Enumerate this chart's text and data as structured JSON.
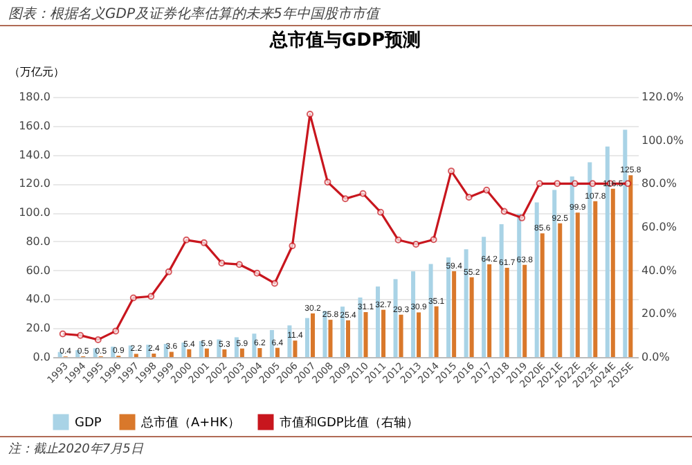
{
  "chart_data": {
    "type": "bar",
    "title": "图表：根据名义GDP及证券化率估算的未来5年中国股市市值",
    "subtitle": "总市值与GDP预测",
    "ylabel": "（万亿元）",
    "categories": [
      "1993",
      "1994",
      "1995",
      "1996",
      "1997",
      "1998",
      "1999",
      "2000",
      "2001",
      "2002",
      "2003",
      "2004",
      "2005",
      "2006",
      "2007",
      "2008",
      "2009",
      "2010",
      "2011",
      "2012",
      "2013",
      "2014",
      "2015",
      "2016",
      "2017",
      "2018",
      "2019",
      "2020E",
      "2021E",
      "2022E",
      "2023E",
      "2024E",
      "2025E"
    ],
    "series": [
      {
        "name": "GDP",
        "type": "bar",
        "color": "#a9d3e6",
        "values": [
          3.5,
          4.8,
          6.1,
          7.2,
          8.0,
          8.5,
          9.1,
          10.0,
          11.0,
          12.2,
          13.7,
          16.2,
          18.7,
          21.9,
          27.0,
          31.9,
          34.9,
          41.2,
          48.8,
          53.9,
          59.3,
          64.4,
          68.9,
          74.6,
          83.2,
          91.9,
          99.1,
          107,
          115.6,
          124.9,
          134.8,
          145.6,
          157.3
        ]
      },
      {
        "name": "总市值（A+HK）",
        "type": "bar",
        "color": "#d9782b",
        "values": [
          0.4,
          0.5,
          0.5,
          0.9,
          2.2,
          2.4,
          3.6,
          5.4,
          5.9,
          5.3,
          5.9,
          6.2,
          6.4,
          11.4,
          30.2,
          25.8,
          25.4,
          31.1,
          32.7,
          29.3,
          30.9,
          35.1,
          59.4,
          55.2,
          64.2,
          61.7,
          63.8,
          85.6,
          92.5,
          99.9,
          107.8,
          116.5,
          125.8
        ],
        "value_labels": [
          "0.4",
          "0.5",
          "0.5",
          "0.9",
          "2.2",
          "2.4",
          "3.6",
          "5.4",
          "5.9",
          "5.3",
          "5.9",
          "6.2",
          "6.4",
          "11.4",
          "30.2",
          "25.8",
          "25.4",
          "31.1",
          "32.7",
          "29.3",
          "30.9",
          "35.1",
          "59.4",
          "55.2",
          "64.2",
          "61.7",
          "63.8",
          "85.6",
          "92.5",
          "99.9",
          "107.8",
          "116.5",
          "125.8"
        ]
      },
      {
        "name": "市值和GDP比值（右轴）",
        "type": "line",
        "axis": "y2",
        "color": "#c8161e",
        "values": [
          10.7,
          10,
          8,
          12,
          27.3,
          28,
          39.3,
          54,
          52.7,
          43.3,
          42.7,
          38.7,
          34,
          51.3,
          112,
          80.7,
          73,
          75.4,
          66.8,
          54,
          52,
          54.2,
          85.8,
          73.7,
          77,
          67.2,
          64.2,
          80,
          80,
          80,
          80,
          80,
          80
        ]
      }
    ],
    "ylim": [
      0,
      180
    ],
    "yticks": [
      {
        "value": 0,
        "label": "0.0"
      },
      {
        "value": 20,
        "label": "20.0"
      },
      {
        "value": 40,
        "label": "40.0"
      },
      {
        "value": 60,
        "label": "60.0"
      },
      {
        "value": 80,
        "label": "80.0"
      },
      {
        "value": 100,
        "label": "100.0"
      },
      {
        "value": 120,
        "label": "120.0"
      },
      {
        "value": 140,
        "label": "140.0"
      },
      {
        "value": 160,
        "label": "160.0"
      },
      {
        "value": 180,
        "label": "180.0"
      }
    ],
    "y2lim": [
      0,
      120
    ],
    "y2ticks": [
      {
        "value": 0,
        "label": "0.0%"
      },
      {
        "value": 20,
        "label": "20.0%"
      },
      {
        "value": 40,
        "label": "40.0%"
      },
      {
        "value": 60,
        "label": "60.0%"
      },
      {
        "value": 80,
        "label": "80.0%"
      },
      {
        "value": 100,
        "label": "100.0%"
      },
      {
        "value": 120,
        "label": "120.0%"
      }
    ],
    "grid": "y",
    "legend": "bottom",
    "marker": "circle",
    "line_style": "solid",
    "annotations": [
      "注：截止2020年7月5日"
    ]
  }
}
